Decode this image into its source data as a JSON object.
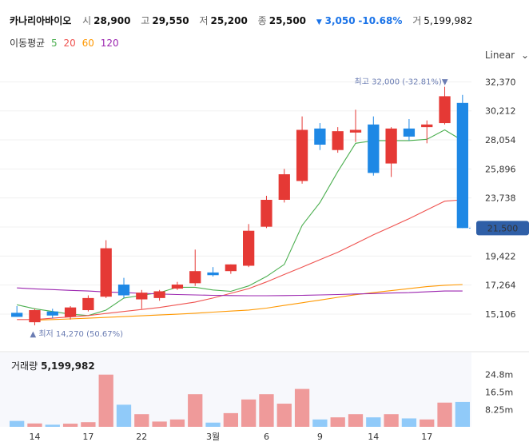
{
  "header": {
    "name": "카나리아바이오",
    "open_label": "시",
    "open": "28,900",
    "high_label": "고",
    "high": "29,550",
    "low_label": "저",
    "low": "25,200",
    "close_label": "종",
    "close": "25,500",
    "change": "3,050",
    "change_pct": "-10.68%",
    "volume_label": "거",
    "volume": "5,199,982"
  },
  "ma_legend": {
    "title": "이동평균",
    "items": [
      {
        "label": "5",
        "color": "#4caf50"
      },
      {
        "label": "20",
        "color": "#ef5350"
      },
      {
        "label": "60",
        "color": "#ff9800"
      },
      {
        "label": "120",
        "color": "#9c27b0"
      }
    ]
  },
  "scale_button": "Linear",
  "chart_data": {
    "type": "candlestick",
    "price_axis": {
      "ticks": [
        "32,370",
        "30,212",
        "28,054",
        "25,896",
        "23,738",
        "21,580",
        "19,422",
        "17,264",
        "15,106"
      ],
      "range": [
        13500,
        33700
      ]
    },
    "current_price_label": "21,500",
    "max_annotation": {
      "prefix": "최고",
      "value": "32,000",
      "pct": "(-32.81%)"
    },
    "min_annotation": {
      "prefix": "최저",
      "value": "14,270",
      "pct": "(50.67%)"
    },
    "x_ticks": [
      {
        "label": "14",
        "index": 1
      },
      {
        "label": "17",
        "index": 4
      },
      {
        "label": "22",
        "index": 7
      },
      {
        "label": "3월",
        "index": 11
      },
      {
        "label": "6",
        "index": 14
      },
      {
        "label": "9",
        "index": 17
      },
      {
        "label": "14",
        "index": 20
      },
      {
        "label": "17",
        "index": 23
      }
    ],
    "candles": [
      {
        "o": 15200,
        "h": 15700,
        "l": 14900,
        "c": 14900
      },
      {
        "o": 14500,
        "h": 15500,
        "l": 14270,
        "c": 15400
      },
      {
        "o": 15300,
        "h": 15500,
        "l": 14800,
        "c": 15000
      },
      {
        "o": 14900,
        "h": 15700,
        "l": 14700,
        "c": 15600
      },
      {
        "o": 15400,
        "h": 16500,
        "l": 15300,
        "c": 16300
      },
      {
        "o": 16400,
        "h": 20600,
        "l": 16300,
        "c": 20000
      },
      {
        "o": 17300,
        "h": 17800,
        "l": 16300,
        "c": 16500
      },
      {
        "o": 16200,
        "h": 16900,
        "l": 15500,
        "c": 16700
      },
      {
        "o": 16300,
        "h": 16900,
        "l": 16100,
        "c": 16800
      },
      {
        "o": 17000,
        "h": 17500,
        "l": 16900,
        "c": 17300
      },
      {
        "o": 17400,
        "h": 19900,
        "l": 17200,
        "c": 18300
      },
      {
        "o": 18200,
        "h": 18600,
        "l": 17900,
        "c": 18000
      },
      {
        "o": 18300,
        "h": 18800,
        "l": 18100,
        "c": 18800
      },
      {
        "o": 18700,
        "h": 21800,
        "l": 18600,
        "c": 21300
      },
      {
        "o": 21600,
        "h": 23900,
        "l": 21500,
        "c": 23600
      },
      {
        "o": 23600,
        "h": 25900,
        "l": 23400,
        "c": 25500
      },
      {
        "o": 25000,
        "h": 29800,
        "l": 24800,
        "c": 28800
      },
      {
        "o": 28900,
        "h": 29300,
        "l": 27300,
        "c": 27700
      },
      {
        "o": 27300,
        "h": 29000,
        "l": 27100,
        "c": 28700
      },
      {
        "o": 28600,
        "h": 30300,
        "l": 27900,
        "c": 28800
      },
      {
        "o": 29200,
        "h": 29800,
        "l": 25400,
        "c": 25600
      },
      {
        "o": 26300,
        "h": 29000,
        "l": 25300,
        "c": 28900
      },
      {
        "o": 28900,
        "h": 29600,
        "l": 28000,
        "c": 28300
      },
      {
        "o": 29000,
        "h": 29500,
        "l": 27800,
        "c": 29200
      },
      {
        "o": 29300,
        "h": 32000,
        "l": 29200,
        "c": 31300
      },
      {
        "o": 30800,
        "h": 31400,
        "l": 21500,
        "c": 21500
      }
    ],
    "ma": [
      {
        "period": "5",
        "color": "#4caf50",
        "values": [
          15800,
          15500,
          15300,
          15100,
          15000,
          15400,
          16300,
          16500,
          16700,
          17100,
          17100,
          16900,
          16800,
          17200,
          17900,
          18800,
          21700,
          23400,
          25700,
          27800,
          28000,
          28000,
          28000,
          28100,
          28800,
          28000
        ]
      },
      {
        "period": "20",
        "color": "#ef5350",
        "values": [
          14700,
          14700,
          14800,
          14900,
          15000,
          15150,
          15300,
          15450,
          15600,
          15800,
          16000,
          16300,
          16650,
          17000,
          17500,
          18050,
          18600,
          19150,
          19700,
          20350,
          21000,
          21600,
          22200,
          22850,
          23500,
          23600
        ]
      },
      {
        "period": "60",
        "color": "#ff9800",
        "values": [
          null,
          14650,
          14700,
          14750,
          14800,
          14860,
          14920,
          14980,
          15040,
          15100,
          15170,
          15250,
          15330,
          15410,
          15550,
          15750,
          15950,
          16150,
          16350,
          16550,
          16700,
          16850,
          17000,
          17150,
          17250,
          17300
        ]
      },
      {
        "period": "120",
        "color": "#9c27b0",
        "values": [
          17050,
          16980,
          16930,
          16870,
          16820,
          16750,
          16700,
          16650,
          16600,
          16560,
          16530,
          16500,
          16480,
          16470,
          16470,
          16480,
          16500,
          16530,
          16560,
          16600,
          16630,
          16670,
          16700,
          16760,
          16820,
          16820
        ]
      }
    ],
    "volume": {
      "label": "거래량",
      "value": "5,199,982",
      "axis_ticks": [
        "24.8m",
        "16.5m",
        "8.25m"
      ],
      "axis_max": 30,
      "values_m": [
        2.8,
        1.6,
        1.0,
        1.5,
        2.2,
        24.8,
        10.5,
        6.0,
        2.5,
        3.5,
        15.5,
        2.0,
        6.5,
        13.0,
        15.5,
        11.0,
        18.0,
        3.5,
        4.5,
        6.0,
        4.5,
        6.0,
        4.0,
        3.5,
        11.5,
        11.8
      ]
    }
  }
}
